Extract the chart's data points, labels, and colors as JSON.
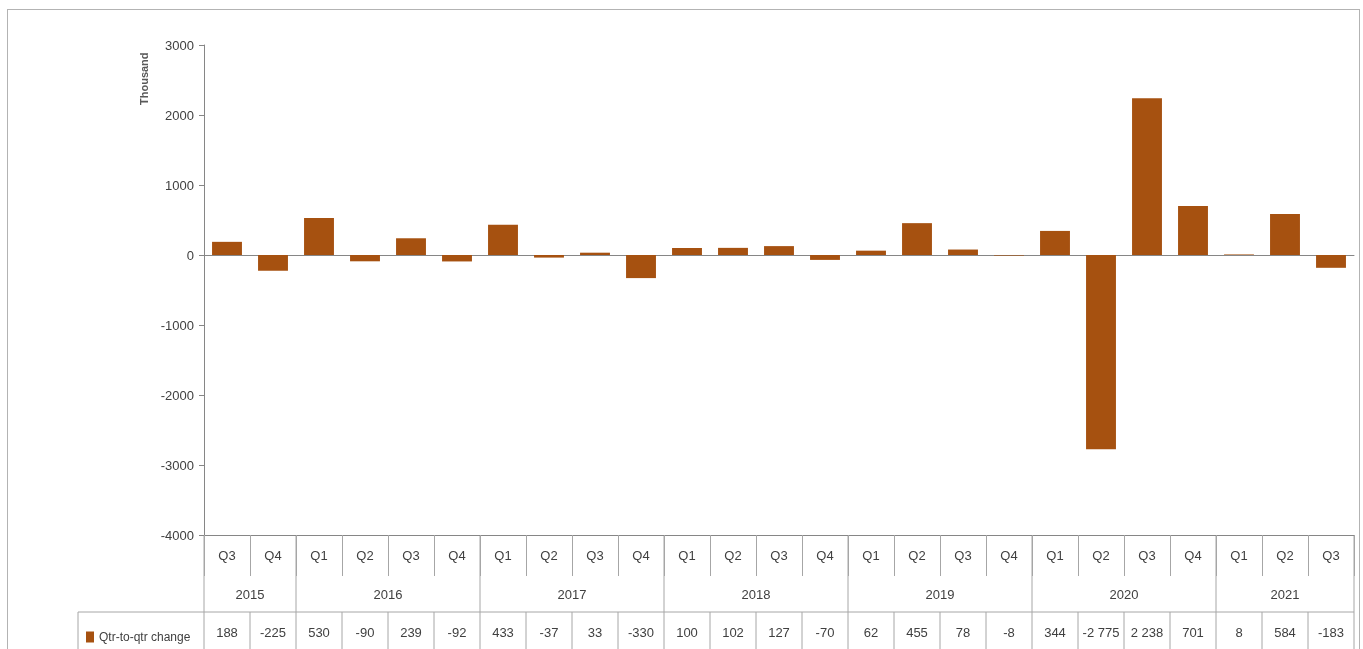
{
  "chart_data": {
    "type": "bar",
    "ylabel": "Thousand",
    "categories": [
      "Q3",
      "Q4",
      "Q1",
      "Q2",
      "Q3",
      "Q4",
      "Q1",
      "Q2",
      "Q3",
      "Q4",
      "Q1",
      "Q2",
      "Q3",
      "Q4",
      "Q1",
      "Q2",
      "Q3",
      "Q4",
      "Q1",
      "Q2",
      "Q3",
      "Q4",
      "Q1",
      "Q2",
      "Q3"
    ],
    "annotations": [
      "2015",
      "2016",
      "2017",
      "2018",
      "2019",
      "2020",
      "2021"
    ],
    "series": [
      {
        "name": "Qtr-to-qtr change",
        "color": "#a65110",
        "values": [
          188,
          -225,
          530,
          -90,
          239,
          -92,
          433,
          -37,
          33,
          -330,
          100,
          102,
          127,
          -70,
          62,
          455,
          78,
          -8,
          344,
          -2775,
          2238,
          701,
          8,
          584,
          -183
        ],
        "value_labels": [
          "188",
          "-225",
          "530",
          "-90",
          "239",
          "-92",
          "433",
          "-37",
          "33",
          "-330",
          "100",
          "102",
          "127",
          "-70",
          "62",
          "455",
          "78",
          "-8",
          "344",
          "-2 775",
          "2 238",
          "701",
          "8",
          "584",
          "-183"
        ]
      }
    ],
    "ylim": [
      -4000,
      3000
    ],
    "yticks": [
      -4000,
      -3000,
      -2000,
      -1000,
      0,
      1000,
      2000,
      3000
    ],
    "grid": false,
    "legend": "bottom left"
  }
}
